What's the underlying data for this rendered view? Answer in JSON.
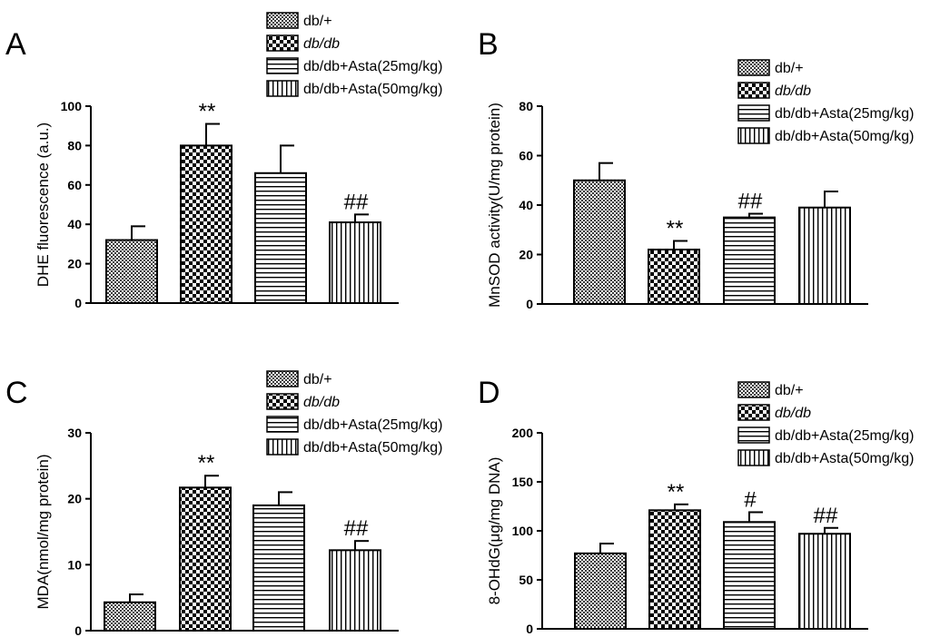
{
  "legend": [
    {
      "label": "db/+",
      "pattern": "grid",
      "italic": false
    },
    {
      "label": "db/db",
      "pattern": "checker",
      "italic": true
    },
    {
      "label": "db/db+Asta(25mg/kg)",
      "pattern": "hlines",
      "italic": false
    },
    {
      "label": "db/db+Asta(50mg/kg)",
      "pattern": "vlines",
      "italic": false
    }
  ],
  "colors": {
    "bar_outline": "#000000",
    "fill_dark": "#000000",
    "fill_light": "#ffffff",
    "grid_fill": "#8a8a8a"
  },
  "chart_data": [
    {
      "type": "bar",
      "panel": "A",
      "title": "",
      "xlabel": "",
      "ylabel": "DHE fluorescence (a.u.)",
      "ylim": [
        0,
        100
      ],
      "yticks": [
        0,
        20,
        40,
        60,
        80,
        100
      ],
      "categories": [
        "db/+",
        "db/db",
        "db/db+Asta(25mg/kg)",
        "db/db+Asta(50mg/kg)"
      ],
      "values": [
        32,
        80,
        66,
        41
      ],
      "errors": [
        7,
        11,
        14,
        4
      ],
      "annotations": [
        "",
        "**",
        "",
        "##"
      ],
      "legend_position": "top-right"
    },
    {
      "type": "bar",
      "panel": "B",
      "title": "",
      "xlabel": "",
      "ylabel": "MnSOD activity(U/mg protein)",
      "ylim": [
        0,
        80
      ],
      "yticks": [
        0,
        20,
        40,
        60,
        80
      ],
      "categories": [
        "db/+",
        "db/db",
        "db/db+Asta(25mg/kg)",
        "db/db+Asta(50mg/kg)"
      ],
      "values": [
        50,
        22,
        35,
        39
      ],
      "errors": [
        7,
        3.5,
        1.5,
        6.5
      ],
      "annotations": [
        "",
        "**",
        "##",
        ""
      ],
      "legend_position": "top-right"
    },
    {
      "type": "bar",
      "panel": "C",
      "title": "",
      "xlabel": "",
      "ylabel": "MDA(nmol/mg protein)",
      "ylim": [
        0,
        30
      ],
      "yticks": [
        0,
        10,
        20,
        30
      ],
      "categories": [
        "db/+",
        "db/db",
        "db/db+Asta(25mg/kg)",
        "db/db+Asta(50mg/kg)"
      ],
      "values": [
        4.3,
        21.7,
        19,
        12.2
      ],
      "errors": [
        1.2,
        1.8,
        2,
        1.4
      ],
      "annotations": [
        "",
        "**",
        "",
        "##"
      ],
      "legend_position": "top-right"
    },
    {
      "type": "bar",
      "panel": "D",
      "title": "",
      "xlabel": "",
      "ylabel": "8-OHdG(μg/mg DNA)",
      "ylim": [
        0,
        200
      ],
      "yticks": [
        0,
        50,
        100,
        150,
        200
      ],
      "categories": [
        "db/+",
        "db/db",
        "db/db+Asta(25mg/kg)",
        "db/db+Asta(50mg/kg)"
      ],
      "values": [
        77,
        121,
        109,
        97
      ],
      "errors": [
        10,
        6,
        10,
        6
      ],
      "annotations": [
        "",
        "**",
        "#",
        "##"
      ],
      "legend_position": "top-right"
    }
  ]
}
